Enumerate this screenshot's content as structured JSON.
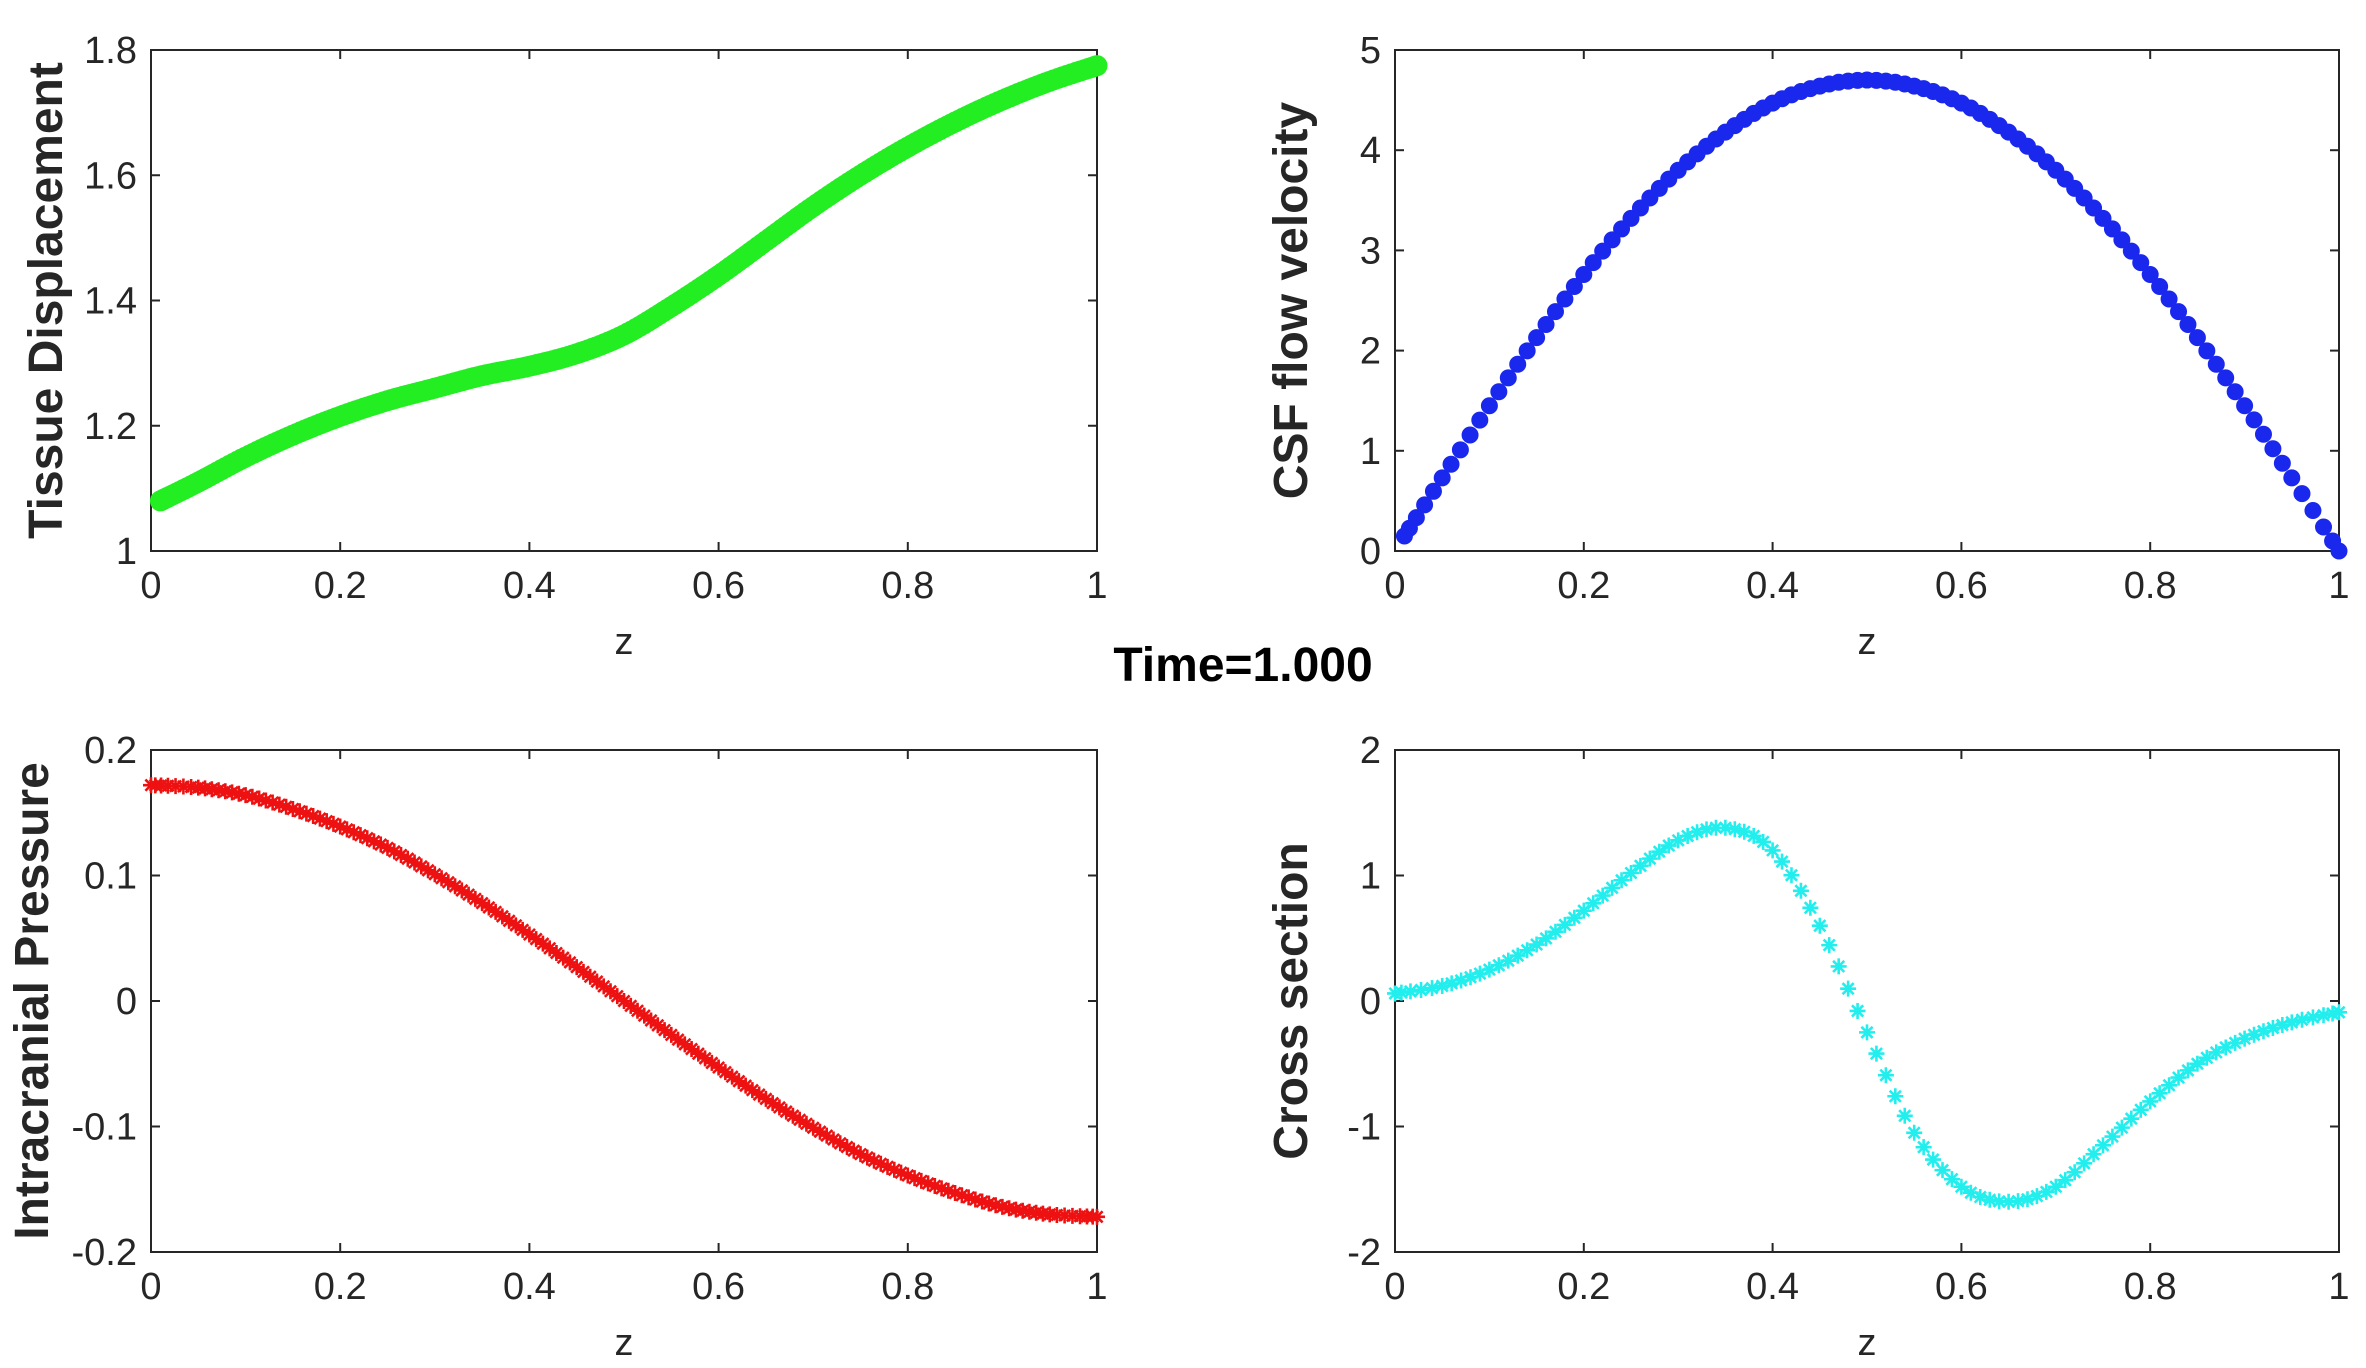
{
  "figure_title": "Time=1.000",
  "chart_data": [
    {
      "id": "tissue",
      "type": "scatter",
      "marker": "filled-circle",
      "color": "#22ee22",
      "xlabel": "z",
      "ylabel": "Tissue Displacement",
      "xlim": [
        0,
        1
      ],
      "ylim": [
        1,
        1.8
      ],
      "xticks": [
        0,
        0.2,
        0.4,
        0.6,
        0.8,
        1
      ],
      "xtick_labels": [
        "0",
        "0.2",
        "0.4",
        "0.6",
        "0.8",
        "1"
      ],
      "yticks": [
        1,
        1.2,
        1.4,
        1.6,
        1.8
      ],
      "ytick_labels": [
        "1",
        "1.2",
        "1.4",
        "1.6",
        "1.8"
      ],
      "x": [
        0.01,
        0.05,
        0.1,
        0.15,
        0.2,
        0.25,
        0.3,
        0.35,
        0.4,
        0.45,
        0.5,
        0.55,
        0.6,
        0.65,
        0.7,
        0.75,
        0.8,
        0.85,
        0.9,
        0.95,
        1.0
      ],
      "y": [
        1.08,
        1.11,
        1.15,
        1.185,
        1.215,
        1.24,
        1.26,
        1.28,
        1.295,
        1.315,
        1.345,
        1.39,
        1.44,
        1.495,
        1.55,
        1.6,
        1.645,
        1.685,
        1.72,
        1.75,
        1.775
      ]
    },
    {
      "id": "csf",
      "type": "scatter",
      "marker": "filled-circle",
      "color": "#1a28ee",
      "xlabel": "z",
      "ylabel": "CSF flow velocity",
      "xlim": [
        0,
        1
      ],
      "ylim": [
        0,
        5
      ],
      "xticks": [
        0,
        0.2,
        0.4,
        0.6,
        0.8,
        1
      ],
      "xtick_labels": [
        "0",
        "0.2",
        "0.4",
        "0.6",
        "0.8",
        "1"
      ],
      "yticks": [
        0,
        1,
        2,
        3,
        4,
        5
      ],
      "ytick_labels": [
        "0",
        "1",
        "2",
        "3",
        "4",
        "5"
      ],
      "x": [
        0.01,
        0.05,
        0.1,
        0.15,
        0.2,
        0.25,
        0.3,
        0.35,
        0.4,
        0.45,
        0.5,
        0.55,
        0.6,
        0.65,
        0.7,
        0.75,
        0.8,
        0.85,
        0.9,
        0.95,
        1.0
      ],
      "y": [
        0.15,
        0.73,
        1.45,
        2.13,
        2.76,
        3.32,
        3.8,
        4.18,
        4.47,
        4.64,
        4.7,
        4.64,
        4.47,
        4.18,
        3.8,
        3.32,
        2.76,
        2.13,
        1.45,
        0.73,
        0.0
      ]
    },
    {
      "id": "pressure",
      "type": "scatter",
      "marker": "asterisk",
      "color": "#ee1111",
      "xlabel": "z",
      "ylabel": "Intracranial Pressure",
      "xlim": [
        0,
        1
      ],
      "ylim": [
        -0.2,
        0.2
      ],
      "xticks": [
        0,
        0.2,
        0.4,
        0.6,
        0.8,
        1
      ],
      "xtick_labels": [
        "0",
        "0.2",
        "0.4",
        "0.6",
        "0.8",
        "1"
      ],
      "yticks": [
        -0.2,
        -0.1,
        0,
        0.1,
        0.2
      ],
      "ytick_labels": [
        "-0.2",
        "-0.1",
        "0",
        "0.1",
        "0.2"
      ],
      "x": [
        0.0,
        0.05,
        0.1,
        0.15,
        0.2,
        0.25,
        0.3,
        0.35,
        0.4,
        0.45,
        0.5,
        0.55,
        0.6,
        0.65,
        0.7,
        0.75,
        0.8,
        0.85,
        0.9,
        0.95,
        1.0
      ],
      "y": [
        0.172,
        0.17,
        0.164,
        0.153,
        0.139,
        0.122,
        0.101,
        0.078,
        0.053,
        0.027,
        0.0,
        -0.027,
        -0.053,
        -0.078,
        -0.101,
        -0.122,
        -0.139,
        -0.153,
        -0.164,
        -0.17,
        -0.172
      ]
    },
    {
      "id": "cross",
      "type": "scatter",
      "marker": "asterisk",
      "color": "#22eeee",
      "xlabel": "z",
      "ylabel": "Cross section",
      "xlim": [
        0,
        1
      ],
      "ylim": [
        -2,
        2
      ],
      "xticks": [
        0,
        0.2,
        0.4,
        0.6,
        0.8,
        1
      ],
      "xtick_labels": [
        "0",
        "0.2",
        "0.4",
        "0.6",
        "0.8",
        "1"
      ],
      "yticks": [
        -2,
        -1,
        0,
        1,
        2
      ],
      "ytick_labels": [
        "-2",
        "-1",
        "0",
        "1",
        "2"
      ],
      "x": [
        0.0,
        0.05,
        0.1,
        0.15,
        0.2,
        0.25,
        0.3,
        0.35,
        0.4,
        0.45,
        0.5,
        0.55,
        0.6,
        0.65,
        0.7,
        0.75,
        0.8,
        0.85,
        0.9,
        0.95,
        1.0
      ],
      "y": [
        0.06,
        0.12,
        0.25,
        0.45,
        0.72,
        1.02,
        1.28,
        1.38,
        1.2,
        0.6,
        -0.25,
        -1.05,
        -1.48,
        -1.6,
        -1.48,
        -1.15,
        -0.8,
        -0.5,
        -0.3,
        -0.17,
        -0.09
      ]
    }
  ]
}
